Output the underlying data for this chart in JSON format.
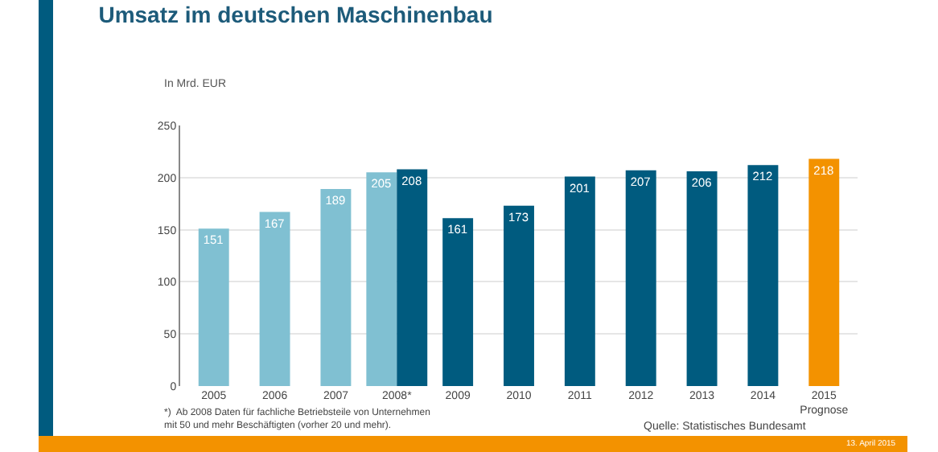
{
  "chart_data": {
    "type": "bar",
    "title": "Umsatz im deutschen Maschinenbau",
    "ylabel": "In Mrd. EUR",
    "categories": [
      "2005",
      "2006",
      "2007",
      "2008*",
      "2009",
      "2010",
      "2011",
      "2012",
      "2013",
      "2014",
      "2015\nPrognose"
    ],
    "series": [
      {
        "color": "#80c0d2",
        "values": [
          151,
          167,
          189,
          205,
          null,
          null,
          null,
          null,
          null,
          null,
          null
        ]
      },
      {
        "color": "#005b7f",
        "values": [
          null,
          null,
          null,
          208,
          161,
          173,
          201,
          207,
          206,
          212,
          null
        ]
      },
      {
        "color": "#f39200",
        "values": [
          null,
          null,
          null,
          null,
          null,
          null,
          null,
          null,
          null,
          null,
          218
        ]
      }
    ],
    "ylim": [
      0,
      250
    ],
    "yticks": [
      0,
      50,
      100,
      150,
      200,
      250
    ],
    "grid": "y",
    "data_labels": true,
    "legend": false,
    "annotations": [
      "*)  Ab 2008 Daten für fachliche Betriebsteile von Unternehmen\nmit 50 und mehr Beschäftigten (vorher 20 und mehr).",
      "Quelle: Statistisches Bundesamt",
      "13. April 2015"
    ]
  }
}
